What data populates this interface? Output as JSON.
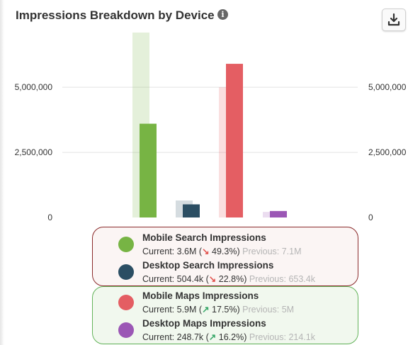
{
  "header": {
    "title": "Impressions Breakdown by Device",
    "info_icon": "info-icon",
    "download_icon": "download-icon"
  },
  "colors": {
    "mobile_search": "#77b444",
    "desktop_search": "#2b4e63",
    "mobile_maps": "#e45e63",
    "desktop_maps": "#9b57b5",
    "trend_down": "#e2544f",
    "trend_up": "#3aa86a"
  },
  "chart_data": {
    "type": "bar",
    "ylim": [
      0,
      6500000
    ],
    "yticks": [
      0,
      2500000,
      5000000
    ],
    "ytick_labels": [
      "0",
      "2,500,000",
      "5,000,000"
    ],
    "grid": true,
    "legend_placement": "bottom",
    "series": [
      {
        "name": "Mobile Search Impressions",
        "current": 3600000,
        "previous": 7100000,
        "color": "#77b444"
      },
      {
        "name": "Desktop Search Impressions",
        "current": 504400,
        "previous": 653400,
        "color": "#2b4e63"
      },
      {
        "name": "Mobile Maps Impressions",
        "current": 5900000,
        "previous": 5000000,
        "color": "#e45e63"
      },
      {
        "name": "Desktop Maps Impressions",
        "current": 248700,
        "previous": 214100,
        "color": "#9b57b5"
      }
    ]
  },
  "legend": {
    "items": [
      {
        "name": "Mobile Search Impressions",
        "current_label": "Current: 3.6M (",
        "trend": "down",
        "change": "49.3%",
        "close": ")",
        "previous_label": "Previous: 7.1M"
      },
      {
        "name": "Desktop Search Impressions",
        "current_label": "Current: 504.4k (",
        "trend": "down",
        "change": "22.8%",
        "close": ")",
        "previous_label": "Previous: 653.4k"
      },
      {
        "name": "Mobile Maps Impressions",
        "current_label": "Current: 5.9M (",
        "trend": "up",
        "change": "17.5%",
        "close": ")",
        "previous_label": "Previous: 5M"
      },
      {
        "name": "Desktop Maps Impressions",
        "current_label": "Current: 248.7k (",
        "trend": "up",
        "change": "16.2%",
        "close": ")",
        "previous_label": "Previous: 214.1k"
      }
    ]
  }
}
